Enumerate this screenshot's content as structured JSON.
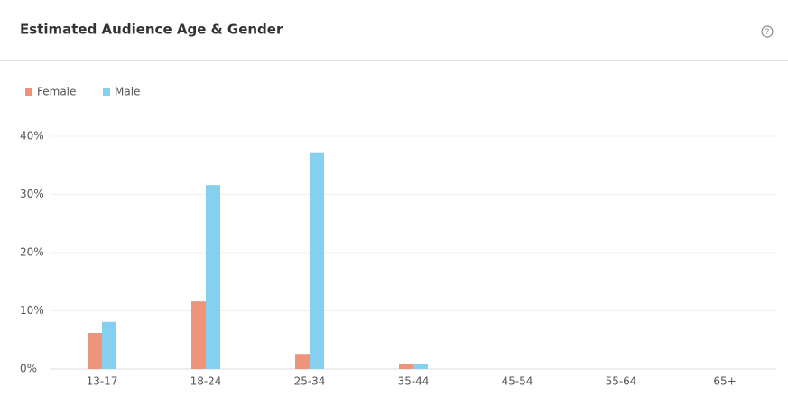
{
  "chart_data": {
    "type": "bar",
    "title": "Estimated Audience Age & Gender",
    "categories": [
      "13-17",
      "18-24",
      "25-34",
      "35-44",
      "45-54",
      "55-64",
      "65+"
    ],
    "series": [
      {
        "name": "Female",
        "color": "#ee937c",
        "values": [
          6.2,
          11.6,
          2.6,
          0.8,
          0,
          0,
          0
        ]
      },
      {
        "name": "Male",
        "color": "#84d0ee",
        "values": [
          8.1,
          31.6,
          37.1,
          0.8,
          0,
          0,
          0
        ]
      }
    ],
    "ylim": [
      0,
      40
    ],
    "yticks": [
      {
        "value": 0,
        "label": "0%"
      },
      {
        "value": 10,
        "label": "10%"
      },
      {
        "value": 20,
        "label": "20%"
      },
      {
        "value": 30,
        "label": "30%"
      },
      {
        "value": 40,
        "label": "40%"
      }
    ],
    "grid": true
  }
}
